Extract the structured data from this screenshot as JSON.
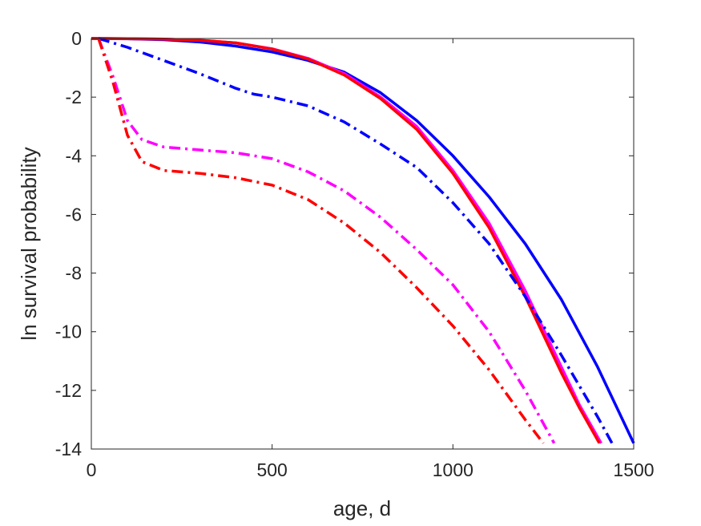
{
  "chart_data": {
    "type": "line",
    "title": "",
    "xlabel": "age, d",
    "ylabel": "ln survival probability",
    "xlim": [
      0,
      1500
    ],
    "ylim": [
      -14,
      0
    ],
    "xticks": [
      0,
      500,
      1000,
      1500
    ],
    "yticks": [
      0,
      -2,
      -4,
      -6,
      -8,
      -10,
      -12,
      -14
    ],
    "grid": false,
    "legend": "none",
    "series": [
      {
        "color": "#0000ff",
        "style": "solid",
        "x": [
          0,
          100,
          200,
          300,
          400,
          500,
          600,
          700,
          800,
          900,
          1000,
          1100,
          1200,
          1300,
          1400,
          1500
        ],
        "y": [
          0,
          -0.01,
          -0.04,
          -0.12,
          -0.26,
          -0.46,
          -0.75,
          -1.15,
          -1.85,
          -2.8,
          -4.0,
          -5.4,
          -7.0,
          -8.9,
          -11.2,
          -13.8
        ]
      },
      {
        "color": "#ff00ff",
        "style": "solid",
        "x": [
          0,
          100,
          200,
          300,
          400,
          500,
          600,
          700,
          800,
          900,
          1000,
          1100,
          1200,
          1300,
          1350,
          1410
        ],
        "y": [
          0,
          -0.005,
          -0.02,
          -0.06,
          -0.15,
          -0.35,
          -0.68,
          -1.2,
          -2.0,
          -3.0,
          -4.5,
          -6.3,
          -8.6,
          -11.2,
          -12.5,
          -13.8
        ]
      },
      {
        "color": "#ff0000",
        "style": "solid",
        "x": [
          0,
          100,
          200,
          300,
          400,
          500,
          600,
          700,
          800,
          900,
          1000,
          1100,
          1200,
          1300,
          1350,
          1405
        ],
        "y": [
          0,
          -0.005,
          -0.02,
          -0.06,
          -0.15,
          -0.36,
          -0.7,
          -1.25,
          -2.05,
          -3.1,
          -4.6,
          -6.45,
          -8.8,
          -11.4,
          -12.6,
          -13.8
        ]
      },
      {
        "color": "#0000ff",
        "style": "dashdot",
        "x": [
          20,
          100,
          200,
          300,
          400,
          450,
          500,
          600,
          700,
          800,
          900,
          1000,
          1100,
          1200,
          1300,
          1400,
          1440
        ],
        "y": [
          0,
          -0.3,
          -0.75,
          -1.2,
          -1.7,
          -1.9,
          -2.0,
          -2.3,
          -2.85,
          -3.6,
          -4.4,
          -5.6,
          -7.0,
          -8.8,
          -10.8,
          -12.9,
          -13.8
        ]
      },
      {
        "color": "#ff00ff",
        "style": "dashdot",
        "x": [
          20,
          60,
          100,
          140,
          200,
          300,
          400,
          500,
          600,
          700,
          800,
          900,
          1000,
          1100,
          1200,
          1280
        ],
        "y": [
          0,
          -1.3,
          -2.8,
          -3.45,
          -3.7,
          -3.8,
          -3.9,
          -4.1,
          -4.55,
          -5.2,
          -6.1,
          -7.2,
          -8.4,
          -10.0,
          -12.0,
          -13.8
        ]
      },
      {
        "color": "#ff0000",
        "style": "dashdot",
        "x": [
          20,
          60,
          100,
          140,
          200,
          300,
          400,
          500,
          600,
          700,
          800,
          900,
          1000,
          1100,
          1200,
          1250
        ],
        "y": [
          0,
          -1.5,
          -3.3,
          -4.2,
          -4.5,
          -4.6,
          -4.75,
          -5.0,
          -5.5,
          -6.3,
          -7.3,
          -8.5,
          -9.8,
          -11.3,
          -13.0,
          -13.8
        ]
      }
    ]
  }
}
